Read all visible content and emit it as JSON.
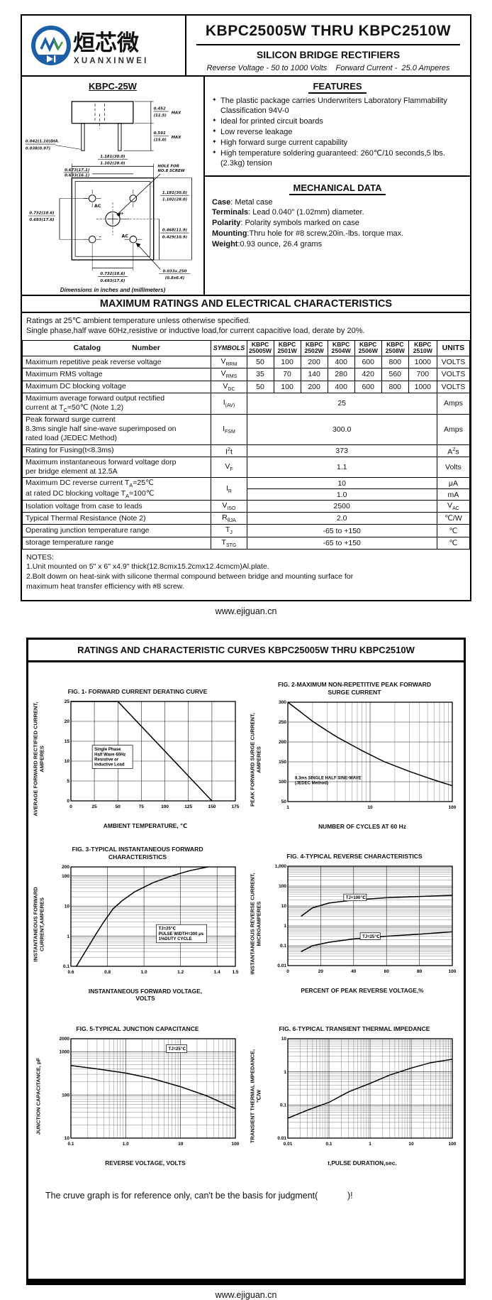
{
  "page1": {
    "logo": {
      "brand_cn": "烜芯微",
      "brand_en": "XUANXINWEI",
      "monogram": "XXW",
      "brand_blue": "#1c5fa8",
      "brand_green": "#3f9b35"
    },
    "title": "KBPC25005W THRU KBPC2510W",
    "subtitle": "SILICON BRIDGE RECTIFIERS",
    "tagline": "Reverse Voltage - 50 to 1000 Volts    Forward Current -  25.0 Amperes",
    "package": {
      "name": "KBPC-25W",
      "max_label": "MAX",
      "hole_note": [
        "HOLE FOR",
        "NO.8 SCREW"
      ],
      "terminals": [
        "AC",
        "+",
        "-",
        "AC"
      ],
      "caption": "Dimensions in inches and (millimeters)",
      "dims": {
        "body_height": [
          "0.452",
          "(11.5)"
        ],
        "lead_length": [
          "0.591",
          "(15.0)"
        ],
        "lead_dia": [
          "0.042(1.10)DIA.",
          "0.038(0.97)"
        ],
        "outer_width": [
          "1.181(30.0)",
          "1.102(28.0)"
        ],
        "hole_span": [
          "0.673(17.1)",
          "0.633(16.1)"
        ],
        "left_height": [
          "0.732(18.6)",
          "0.693(17.6)"
        ],
        "outer_height": [
          "1.181(30.0)",
          "1.102(28.0)"
        ],
        "inner_height": [
          "0.468(11.9)",
          "0.429(10.9)"
        ],
        "bottom_span": [
          "0.732(18.6)",
          "0.693(17.6)"
        ],
        "lug": [
          "0.033x.250",
          "(0.8x6.4)"
        ]
      }
    },
    "features": {
      "heading": "FEATURES",
      "items": [
        "The plastic package carries Underwriters Laboratory Flammability Classification 94V-0",
        "Ideal for printed circuit boards",
        "Low reverse leakage",
        "High forward surge current capability",
        "High temperature soldering guaranteed: 260℃/10 seconds,5 lbs. (2.3kg) tension"
      ]
    },
    "mechanical": {
      "heading": "MECHANICAL DATA",
      "items": [
        {
          "label": "Case",
          "text": ": Metal case"
        },
        {
          "label": "Terminals",
          "text": ": Lead 0.040\"  (1.02mm) diameter."
        },
        {
          "label": "Polarity",
          "text": ": Polarity symbols marked on case"
        },
        {
          "label": "Mounting",
          "text": ":Thru hole for #8 screw,20in.-lbs. torque max."
        },
        {
          "label": "Weight",
          "text": ":0.93 ounce, 26.4 grams"
        }
      ]
    },
    "ratings": {
      "heading": "MAXIMUM RATINGS AND ELECTRICAL CHARACTERISTICS",
      "conditions": [
        "Ratings at 25℃ ambient temperature unless otherwise specified.",
        "Single phase,half wave 60Hz,resistive or inductive load,for current capacitive load, derate by 20%."
      ],
      "header": {
        "catalog": "Catalog",
        "number": "Number",
        "symbols": "SYMBOLS",
        "parts": [
          [
            "KBPC",
            "25005W"
          ],
          [
            "KBPC",
            "2501W"
          ],
          [
            "KBPC",
            "2502W"
          ],
          [
            "KBPC",
            "2504W"
          ],
          [
            "KBPC",
            "2506W"
          ],
          [
            "KBPC",
            "2508W"
          ],
          [
            "KBPC",
            "2510W"
          ]
        ],
        "units": "UNITS"
      },
      "rows": [
        {
          "type": "per",
          "param": [
            "Maximum repetitive peak reverse voltage"
          ],
          "sym": "V~RRM~",
          "values": [
            "50",
            "100",
            "200",
            "400",
            "600",
            "800",
            "1000"
          ],
          "unit": "VOLTS"
        },
        {
          "type": "per",
          "param": [
            "Maximum RMS voltage"
          ],
          "sym": "V~RMS~",
          "values": [
            "35",
            "70",
            "140",
            "280",
            "420",
            "560",
            "700"
          ],
          "unit": "VOLTS"
        },
        {
          "type": "per",
          "param": [
            "Maximum DC blocking voltage"
          ],
          "sym": "V~DC~",
          "values": [
            "50",
            "100",
            "200",
            "400",
            "600",
            "800",
            "1000"
          ],
          "unit": "VOLTS"
        },
        {
          "type": "span",
          "param": [
            "Maximum average forward output rectified",
            "current at  T~C~=50℃  (Note 1,2)"
          ],
          "sym": "I~(AV)~",
          "value": "25",
          "unit": "Amps"
        },
        {
          "type": "span",
          "param": [
            "Peak forward surge current",
            "8.3ms single half sine-wave superimposed on",
            "rated load (JEDEC Method)"
          ],
          "sym": "I~FSM~",
          "value": "300.0",
          "unit": "Amps"
        },
        {
          "type": "span",
          "param": [
            "Rating for Fusing(t<8.3ms)"
          ],
          "sym": "I^2^t",
          "value": "373",
          "unit": "A^2^s"
        },
        {
          "type": "span",
          "param": [
            "Maximum instantaneous forward voltage dorp",
            "per bridge element at 12.5A"
          ],
          "sym": "V~F~",
          "value": "1.1",
          "unit": "Volts"
        },
        {
          "type": "split",
          "param": [
            "Maximum DC reverse current      T~A~=25℃",
            "at rated DC blocking voltage      T~A~=100℃"
          ],
          "sym": "I~R~",
          "values2": [
            {
              "value": "10",
              "unit": "μA"
            },
            {
              "value": "1.0",
              "unit": "mA"
            }
          ]
        },
        {
          "type": "span",
          "param": [
            "Isolation voltage from case to leads"
          ],
          "sym": "V~ISO~",
          "value": "2500",
          "unit": "V~AC~"
        },
        {
          "type": "span",
          "param": [
            "Typical Thermal Resistance (Note 2)"
          ],
          "sym": "R~θJA~",
          "value": "2.0",
          "unit": "℃/W"
        },
        {
          "type": "span",
          "param": [
            "Operating junction temperature range"
          ],
          "sym": "T~J~",
          "value": "-65 to +150",
          "unit": "℃"
        },
        {
          "type": "span",
          "param": [
            "storage temperature range"
          ],
          "sym": "T~STG~",
          "value": "-65 to +150",
          "unit": "℃"
        }
      ]
    },
    "notes": {
      "heading": "NOTES:",
      "lines": [
        "1.Unit mounted on 5\"  x 6\"  x4.9\"  thick(12.8cmx15.2cmx12.4cmcm)Al.plate.",
        "2.Bolt dowm on heat-sink with silicone thermal compound between bridge and mounting surface for",
        "  maximum heat transfer efficiency with #8 screw."
      ]
    },
    "footer": "www.ejiguan.cn"
  },
  "page2": {
    "heading": "RATINGS AND CHARACTERISTIC CURVES KBPC25005W THRU KBPC2510W",
    "disclaimer": "The cruve graph is for reference only, can't be the basis for judgment(            )!",
    "footer": "www.ejiguan.cn"
  },
  "chart_data": [
    {
      "id": "fig1",
      "type": "line",
      "title": "FIG. 1- FORWARD CURRENT DERATING CURVE",
      "xlabel": "AMBIENT TEMPERATURE, ℃",
      "ylabel": "AVERAGE FORWARD RECTIFIED CURRENT,\nAMPERES",
      "x": {
        "type": "linear",
        "min": 0,
        "max": 175,
        "ticks": [
          0,
          25,
          50,
          75,
          100,
          125,
          150,
          175
        ],
        "tick_labels": [
          "0",
          "25",
          "50",
          "75",
          "100",
          "125",
          "150",
          "175"
        ]
      },
      "y": {
        "type": "linear",
        "min": 0,
        "max": 25,
        "ticks": [
          0,
          5,
          10,
          15,
          20,
          25
        ],
        "tick_labels": [
          "0",
          "5",
          "10",
          "15",
          "20",
          "25"
        ]
      },
      "series": [
        {
          "name": "derating",
          "points": [
            [
              0,
              25
            ],
            [
              50,
              25
            ],
            [
              150,
              0
            ]
          ]
        }
      ],
      "annotations": [
        {
          "lines": [
            "Single Phase",
            "Half Wave 60Hz",
            "Resistive or",
            "Inductive Load"
          ],
          "fx": 0.13,
          "fy": 0.44,
          "boxed": true
        }
      ]
    },
    {
      "id": "fig2",
      "type": "line",
      "title": "FIG. 2-MAXIMUM NON-REPETITIVE PEAK FORWARD\nSURGE CURRENT",
      "xlabel": "NUMBER OF CYCLES AT 60 Hz",
      "ylabel": "PEAK  FORWARD SURGE CURRENT,\nAMPERES",
      "x": {
        "type": "log",
        "min": 1,
        "max": 100,
        "ticks": [
          1,
          10,
          100
        ],
        "tick_labels": [
          "1",
          "10",
          "100"
        ]
      },
      "y": {
        "type": "linear",
        "min": 50,
        "max": 300,
        "ticks": [
          50,
          100,
          150,
          200,
          250,
          300
        ],
        "tick_labels": [
          "50",
          "100",
          "150",
          "200",
          "250",
          "300"
        ]
      },
      "series": [
        {
          "name": "surge",
          "points": [
            [
              1,
              300
            ],
            [
              1.5,
              272
            ],
            [
              2,
              252
            ],
            [
              3,
              228
            ],
            [
              4,
              212
            ],
            [
              6,
              192
            ],
            [
              8,
              178
            ],
            [
              10,
              168
            ],
            [
              15,
              150
            ],
            [
              20,
              140
            ],
            [
              30,
              126
            ],
            [
              50,
              110
            ],
            [
              70,
              100
            ],
            [
              100,
              90
            ]
          ]
        }
      ],
      "annotations": [
        {
          "lines": [
            "8.3ms SINGLE HALF SINE-WAVE",
            "(JEDEC Method)"
          ],
          "fx": 0.03,
          "fy": 0.72,
          "boxed": false
        }
      ]
    },
    {
      "id": "fig3",
      "type": "line",
      "title": "FIG. 3-TYPICAL INSTANTANEOUS FORWARD\nCHARACTERISTICS",
      "xlabel": "INSTANTANEOUS FORWARD VOLTAGE,\nVOLTS",
      "ylabel": "INSTANTANEOUS FORWARD\nCURRENT,AMPERES",
      "x": {
        "type": "linear",
        "min": 0.6,
        "max": 1.5,
        "ticks": [
          0.6,
          0.8,
          1.0,
          1.2,
          1.4,
          1.5
        ],
        "tick_labels": [
          "0.6",
          "0.8",
          "1.0",
          "1.2",
          "1.4",
          "1.5"
        ]
      },
      "y": {
        "type": "log",
        "min": 0.1,
        "max": 200,
        "ticks": [
          0.1,
          1,
          10,
          100,
          200
        ],
        "tick_labels": [
          "0.1",
          "1",
          "10",
          "100",
          "200"
        ]
      },
      "series": [
        {
          "name": "vf",
          "points": [
            [
              0.63,
              0.1
            ],
            [
              0.66,
              0.2
            ],
            [
              0.7,
              0.5
            ],
            [
              0.73,
              1
            ],
            [
              0.78,
              3
            ],
            [
              0.83,
              8
            ],
            [
              0.88,
              15
            ],
            [
              0.95,
              30
            ],
            [
              1.05,
              60
            ],
            [
              1.15,
              100
            ],
            [
              1.25,
              150
            ],
            [
              1.35,
              200
            ]
          ]
        }
      ],
      "annotations": [
        {
          "lines": [
            "TJ=25℃",
            "PULSE WIDTH=300 μs",
            "1%DUTY CYCLE"
          ],
          "fx": 0.52,
          "fy": 0.58,
          "boxed": true
        }
      ]
    },
    {
      "id": "fig4",
      "type": "line",
      "title": "FIG. 4-TYPICAL REVERSE CHARACTERISTICS",
      "xlabel": "PERCENT OF PEAK REVERSE VOLTAGE,%",
      "ylabel": "INSTANTANEOUS REVERSE CURRENT,\nMICROAMPERES",
      "x": {
        "type": "linear",
        "min": 0,
        "max": 100,
        "ticks": [
          0,
          20,
          40,
          60,
          80,
          100
        ],
        "tick_labels": [
          "0",
          "20",
          "40",
          "60",
          "80",
          "100"
        ]
      },
      "y": {
        "type": "log",
        "min": 0.01,
        "max": 1000,
        "ticks": [
          0.01,
          0.1,
          1,
          10,
          100,
          1000
        ],
        "tick_labels": [
          "0.01",
          "0.1",
          "1",
          "10",
          "100",
          "1,000"
        ]
      },
      "series": [
        {
          "name": "TJ-100C",
          "points": [
            [
              8,
              3
            ],
            [
              15,
              8
            ],
            [
              25,
              14
            ],
            [
              40,
              20
            ],
            [
              60,
              26
            ],
            [
              80,
              30
            ],
            [
              100,
              34
            ]
          ],
          "label": {
            "text": "TJ=100℃",
            "fx": 0.34,
            "fy": 0.28
          }
        },
        {
          "name": "TJ-25C",
          "points": [
            [
              8,
              0.05
            ],
            [
              15,
              0.1
            ],
            [
              25,
              0.15
            ],
            [
              40,
              0.22
            ],
            [
              60,
              0.3
            ],
            [
              80,
              0.38
            ],
            [
              100,
              0.5
            ]
          ],
          "label": {
            "text": "TJ=25℃",
            "fx": 0.44,
            "fy": 0.67
          }
        }
      ]
    },
    {
      "id": "fig5",
      "type": "line",
      "title": "FIG. 5-TYPICAL JUNCTION CAPACITANCE",
      "xlabel": "REVERSE VOLTAGE, VOLTS",
      "ylabel": "JUNCTION CAPACITANCE, pF",
      "x": {
        "type": "log",
        "min": 0.1,
        "max": 100,
        "ticks": [
          0.1,
          1,
          10,
          100
        ],
        "tick_labels": [
          "0.1",
          "1.0",
          "10",
          "100"
        ]
      },
      "y": {
        "type": "log",
        "min": 10,
        "max": 2000,
        "ticks": [
          10,
          100,
          1000,
          2000
        ],
        "tick_labels": [
          "10",
          "100",
          "1000",
          "2000"
        ]
      },
      "series": [
        {
          "name": "cj",
          "points": [
            [
              0.1,
              480
            ],
            [
              0.3,
              400
            ],
            [
              1,
              320
            ],
            [
              3,
              240
            ],
            [
              10,
              155
            ],
            [
              30,
              95
            ],
            [
              100,
              48
            ]
          ]
        }
      ],
      "annotations": [
        {
          "lines": [
            "TJ=25℃"
          ],
          "fx": 0.58,
          "fy": 0.06,
          "boxed": true
        }
      ]
    },
    {
      "id": "fig6",
      "type": "line",
      "title": "FIG. 6-TYPICAL TRANSIENT THERMAL IMPEDANCE",
      "xlabel": "t,PULSE DURATION,sec.",
      "ylabel": "TRANSIENT THERMAL IMPEDANCE,\n℃/W",
      "x": {
        "type": "log",
        "min": 0.01,
        "max": 100,
        "ticks": [
          0.01,
          0.1,
          1,
          10,
          100
        ],
        "tick_labels": [
          "0.01",
          "0.1",
          "1",
          "10",
          "100"
        ]
      },
      "y": {
        "type": "log",
        "min": 0.01,
        "max": 10,
        "ticks": [
          0.01,
          0.1,
          1,
          10
        ],
        "tick_labels": [
          "0.01",
          "0.1",
          "1",
          "10"
        ]
      },
      "series": [
        {
          "name": "zth",
          "points": [
            [
              0.01,
              0.04
            ],
            [
              0.03,
              0.07
            ],
            [
              0.1,
              0.12
            ],
            [
              0.3,
              0.25
            ],
            [
              1,
              0.45
            ],
            [
              3,
              0.8
            ],
            [
              10,
              1.3
            ],
            [
              30,
              1.9
            ],
            [
              100,
              2.4
            ]
          ]
        }
      ]
    }
  ]
}
